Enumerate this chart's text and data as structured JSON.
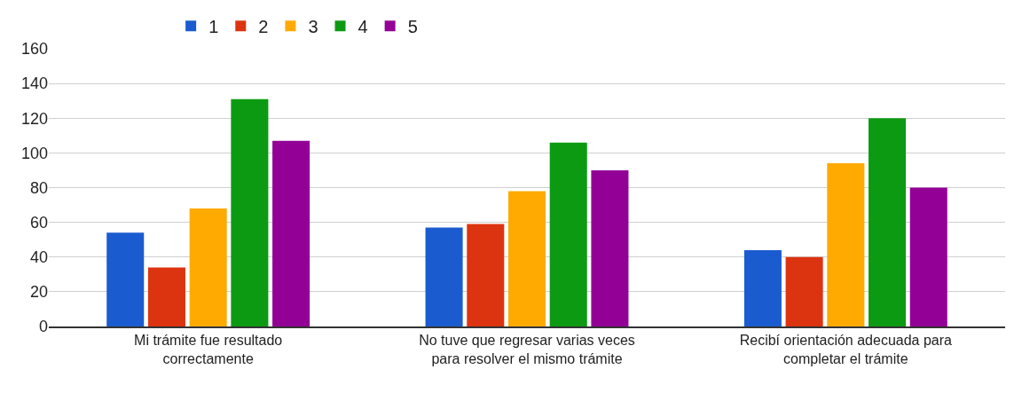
{
  "chart_data": {
    "type": "bar",
    "categories": [
      "Mi trámite fue resultado correctamente",
      "No tuve que regresar varias veces para resolver el mismo trámite",
      "Recibí orientación adecuada para completar el trámite"
    ],
    "series": [
      {
        "name": "1",
        "color": "#1a5cd0",
        "values": [
          54,
          57,
          44
        ]
      },
      {
        "name": "2",
        "color": "#dc3410",
        "values": [
          34,
          59,
          40
        ]
      },
      {
        "name": "3",
        "color": "#ffaa00",
        "values": [
          68,
          78,
          94
        ]
      },
      {
        "name": "4",
        "color": "#0c9a12",
        "values": [
          131,
          106,
          120
        ]
      },
      {
        "name": "5",
        "color": "#930096",
        "values": [
          107,
          90,
          80
        ]
      }
    ],
    "ylim": [
      0,
      160
    ],
    "yticks": [
      0,
      20,
      40,
      60,
      80,
      100,
      120,
      140,
      160
    ],
    "grid": "y",
    "legend": "top left"
  }
}
